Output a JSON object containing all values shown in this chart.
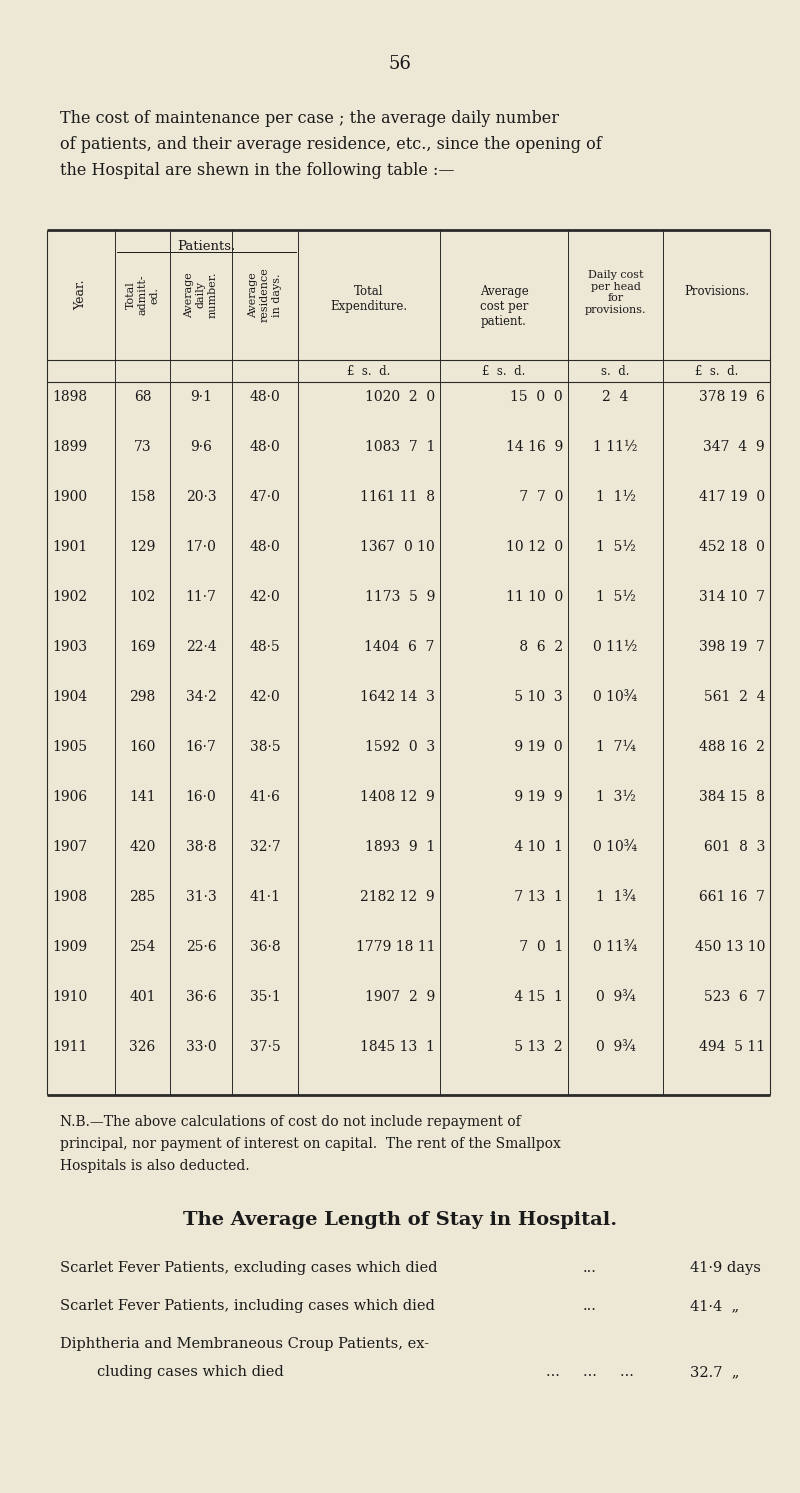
{
  "bg_color": "#EDE8D5",
  "text_color": "#1a1a1a",
  "page_number": "56",
  "intro_text": [
    "The cost of maintenance per case ; the average daily number",
    "of patients, and their average residence, etc., since the opening of",
    "the Hospital are shewn in the following table :—"
  ],
  "table_header_row1": [
    "",
    "Patients.",
    "",
    "",
    "Total",
    "Average",
    "Daily cost",
    ""
  ],
  "col_headers": [
    "Year.",
    "Total admitt-\ned.",
    "Average\ndaily\nnumber.",
    "Average\nresidence\nin days.",
    "Total\nExpenditure.",
    "Average\ncost per\npatient.",
    "Daily cost\nper head\nfor\nprovisions.",
    "Provisions."
  ],
  "units_row": [
    "",
    "",
    "",
    "",
    "£  s.  d.",
    "£  s.  d.",
    "s.  d.",
    "£  s.  d."
  ],
  "rows": [
    [
      "1898",
      "68",
      "9·1",
      "48·0",
      "1020  2  0",
      "15  0  0",
      "2  4",
      "378 19  6"
    ],
    [
      "1899",
      "73",
      "9·6",
      "48·0",
      "1083  7  1",
      "14 16  9",
      "1 11½",
      "347  4  9"
    ],
    [
      "1900",
      "158",
      "20·3",
      "47·0",
      "1161 11  8",
      " 7  7  0",
      "1  1½",
      "417 19  0"
    ],
    [
      "1901",
      "129",
      "17·0",
      "48·0",
      "1367  0 10",
      "10 12  0",
      "1  5½",
      "452 18  0"
    ],
    [
      "1902",
      "102",
      "11·7",
      "42·0",
      "1173  5  9",
      "11 10  0",
      "1  5½",
      "314 10  7"
    ],
    [
      "1903",
      "169",
      "22·4",
      "48·5",
      "1404  6  7",
      " 8  6  2",
      "0 11½",
      "398 19  7"
    ],
    [
      "1904",
      "298",
      "34·2",
      "42·0",
      "1642 14  3",
      " 5 10  3",
      "0 10¾",
      "561  2  4"
    ],
    [
      "1905",
      "160",
      "16·7",
      "38·5",
      "1592  0  3",
      " 9 19  0",
      "1  7¼",
      "488 16  2"
    ],
    [
      "1906",
      "141",
      "16·0",
      "41·6",
      "1408 12  9",
      " 9 19  9",
      "1  3½",
      "384 15  8"
    ],
    [
      "1907",
      "420",
      "38·8",
      "32·7",
      "1893  9  1",
      " 4 10  1",
      "0 10¾",
      "601  8  3"
    ],
    [
      "1908",
      "285",
      "31·3",
      "41·1",
      "2182 12  9",
      " 7 13  1",
      "1  1¾",
      "661 16  7"
    ],
    [
      "1909",
      "254",
      "25·6",
      "36·8",
      "1779 18 11",
      " 7  0  1",
      "0 11¾",
      "450 13 10"
    ],
    [
      "1910",
      "401",
      "36·6",
      "35·1",
      "1907  2  9",
      " 4 15  1",
      "0  9¾",
      "523  6  7"
    ],
    [
      "1911",
      "326",
      "33·0",
      "37·5",
      "1845 13  1",
      " 5 13  2",
      "0  9¾",
      "494  5 11"
    ]
  ],
  "nb_text": [
    "N.B.—The above calculations of cost do not include repayment of",
    "principal, nor payment of interest on capital.  The rent of the Smallpox",
    "Hospitals is also deducted."
  ],
  "section_title": "The Average Length of Stay in Hospital.",
  "stay_lines": [
    [
      "Scarlet Fever Patients, excluding cases which died",
      "...",
      "41·9 days"
    ],
    [
      "Scarlet Fever Patients, including cases which died",
      "...",
      "41·4  „"
    ],
    [
      "Diphtheria and Membraneous Croup Patients, ex-",
      "",
      ""
    ],
    [
      "        cluding cases which died",
      "...     ...     ...",
      "32.7  „"
    ]
  ]
}
